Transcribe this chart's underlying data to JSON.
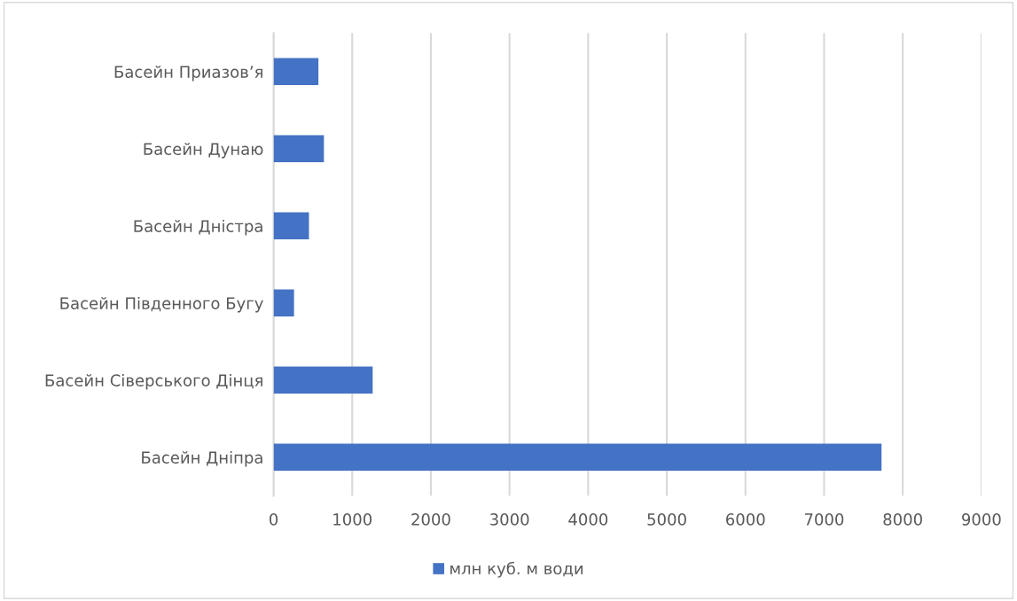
{
  "chart_data": {
    "type": "bar",
    "orientation": "horizontal",
    "categories": [
      "Басейн Приазов’я",
      "Басейн Дунаю",
      "Басейн Дністра",
      "Басейн Південного Бугу",
      "Басейн Сіверського Дінця",
      "Басейн Дніпра"
    ],
    "series": [
      {
        "name": "млн куб. м води",
        "color": "#4472c4",
        "values": [
          570,
          640,
          450,
          260,
          1260,
          7730
        ]
      }
    ],
    "xlim": [
      0,
      9000
    ],
    "xticks": [
      0,
      1000,
      2000,
      3000,
      4000,
      5000,
      6000,
      7000,
      8000,
      9000
    ],
    "grid": "x",
    "legend": "bottom"
  }
}
